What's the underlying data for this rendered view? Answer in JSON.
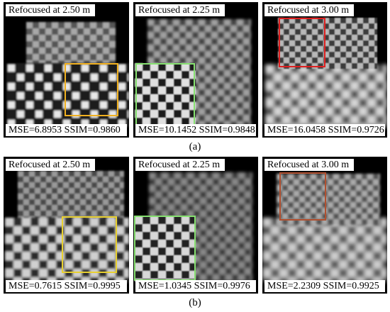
{
  "figure": {
    "rows": [
      {
        "caption": "(a)",
        "panels": [
          {
            "refocus_label": "Refocused at 2.50 m",
            "metrics": "MSE=6.8953 SSIM=0.9860",
            "box_color": "#f0b020"
          },
          {
            "refocus_label": "Refocused at 2.25 m",
            "metrics": "MSE=10.1452 SSIM=0.9848",
            "box_color": "#86e070"
          },
          {
            "refocus_label": "Refocused at 3.00 m",
            "metrics": "MSE=16.0458 SSIM=0.9726",
            "box_color": "#e02020"
          }
        ]
      },
      {
        "caption": "(b)",
        "panels": [
          {
            "refocus_label": "Refocused at 2.50 m",
            "metrics": "MSE=0.7615 SSIM=0.9995",
            "box_color": "#e8d030"
          },
          {
            "refocus_label": "Refocused at 2.25 m",
            "metrics": "MSE=1.0345 SSIM=0.9976",
            "box_color": "#86e070"
          },
          {
            "refocus_label": "Refocused at 3.00 m",
            "metrics": "MSE=2.2309 SSIM=0.9925",
            "box_color": "#b05030"
          }
        ]
      }
    ]
  }
}
